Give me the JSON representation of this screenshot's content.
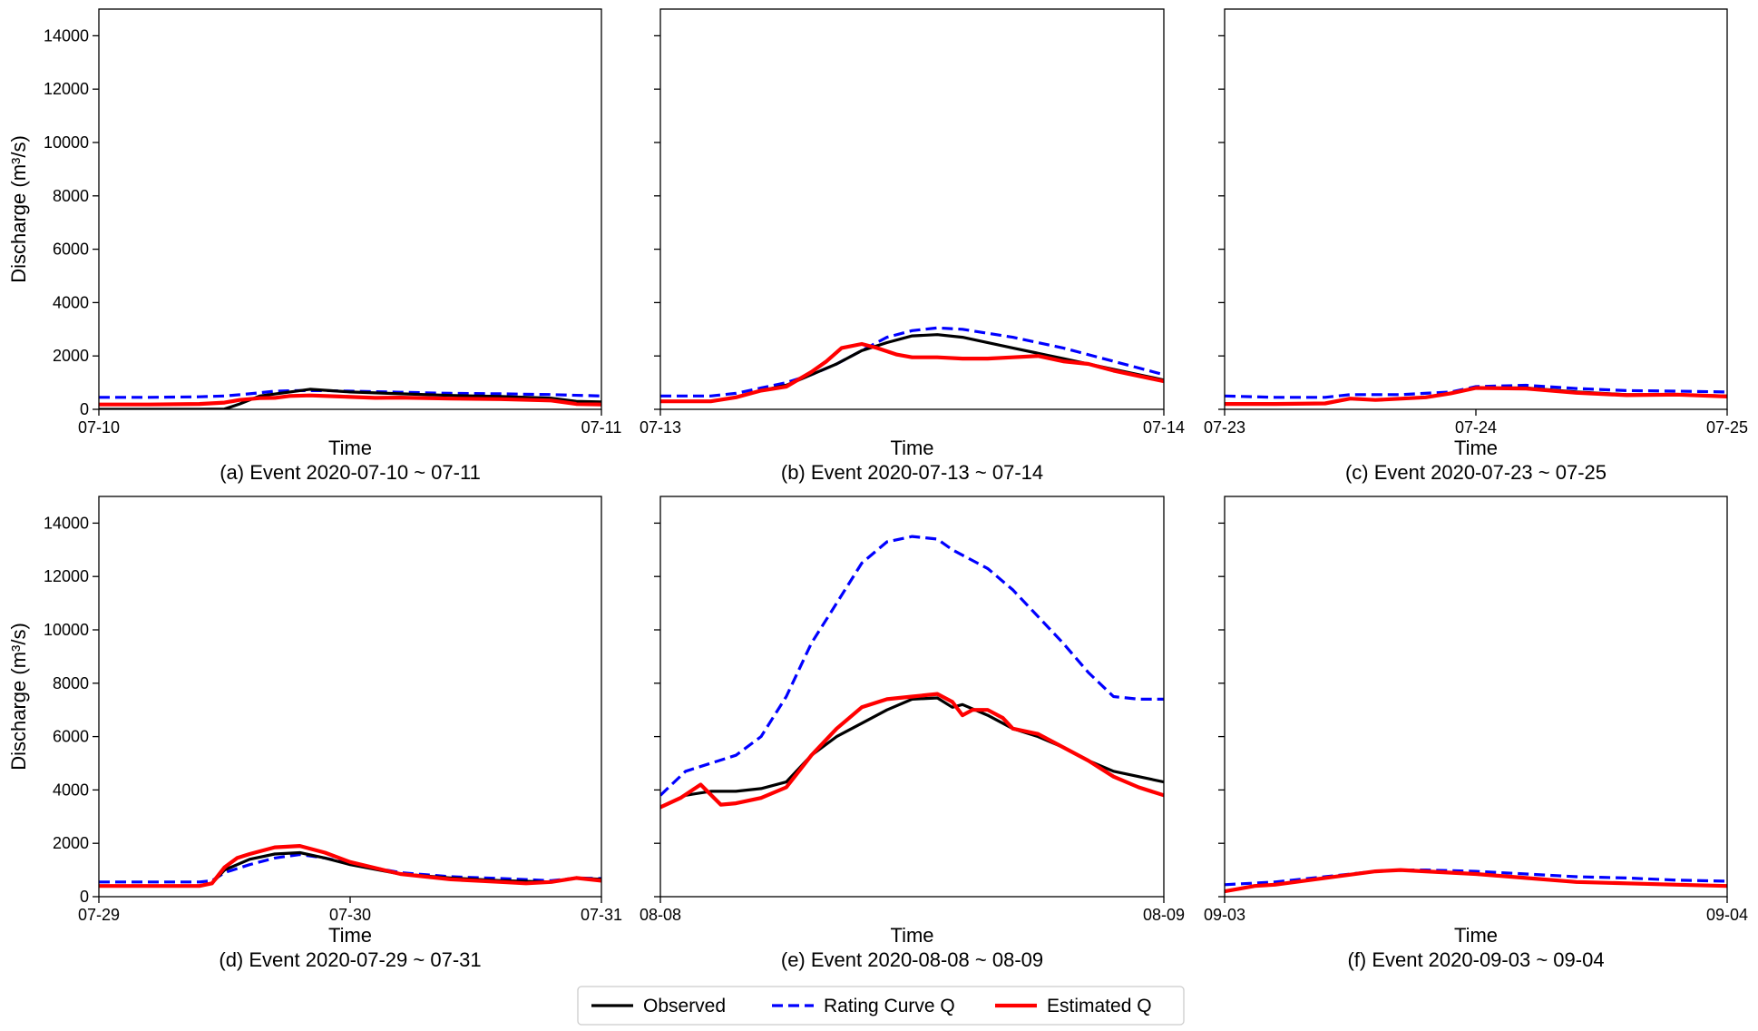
{
  "colors": {
    "observed": "#000000",
    "rating": "#0000ff",
    "estimated": "#ff0000"
  },
  "legend": {
    "placement": "bottom-center",
    "entries": [
      {
        "key": "observed",
        "label": "Observed",
        "style": "solid"
      },
      {
        "key": "rating",
        "label": "Rating Curve Q",
        "style": "dashed"
      },
      {
        "key": "estimated",
        "label": "Estimated Q",
        "style": "solid"
      }
    ]
  },
  "shared": {
    "ylabel": "Discharge (m³/s)",
    "xlabel": "Time",
    "ylim": [
      0,
      15000
    ],
    "yticks": [
      0,
      2000,
      4000,
      6000,
      8000,
      10000,
      12000,
      14000
    ]
  },
  "chart_data": [
    {
      "type": "line",
      "caption": "(a) Event 2020-07-10 ~ 07-11",
      "xlabel": "Time",
      "ylabel": "Discharge (m³/s)",
      "xticks": [
        "07-10",
        "07-11"
      ],
      "xlim": [
        0,
        1
      ],
      "ylim": [
        0,
        15000
      ],
      "series": [
        {
          "key": "observed",
          "name": "Observed",
          "x": [
            0,
            0.1,
            0.2,
            0.25,
            0.28,
            0.32,
            0.38,
            0.42,
            0.5,
            0.6,
            0.7,
            0.8,
            0.9,
            0.95,
            1.0
          ],
          "y": [
            0,
            0,
            0,
            10,
            200,
            500,
            650,
            750,
            650,
            580,
            520,
            480,
            420,
            300,
            280
          ]
        },
        {
          "key": "rating",
          "name": "Rating Curve Q",
          "x": [
            0,
            0.1,
            0.2,
            0.25,
            0.3,
            0.35,
            0.4,
            0.45,
            0.5,
            0.6,
            0.7,
            0.8,
            0.9,
            1.0
          ],
          "y": [
            450,
            450,
            470,
            500,
            580,
            680,
            700,
            700,
            680,
            640,
            600,
            580,
            550,
            500
          ]
        },
        {
          "key": "estimated",
          "name": "Estimated Q",
          "x": [
            0,
            0.1,
            0.2,
            0.25,
            0.28,
            0.32,
            0.35,
            0.38,
            0.42,
            0.48,
            0.55,
            0.6,
            0.7,
            0.8,
            0.9,
            0.95,
            1.0
          ],
          "y": [
            180,
            180,
            200,
            250,
            350,
            420,
            430,
            500,
            520,
            480,
            430,
            440,
            400,
            380,
            330,
            200,
            180
          ]
        }
      ]
    },
    {
      "type": "line",
      "caption": "(b) Event 2020-07-13 ~ 07-14",
      "xlabel": "Time",
      "ylabel": "",
      "xticks": [
        "07-13",
        "07-14"
      ],
      "xlim": [
        0,
        1
      ],
      "ylim": [
        0,
        15000
      ],
      "series": [
        {
          "key": "observed",
          "name": "Observed",
          "x": [
            0,
            0.1,
            0.15,
            0.2,
            0.25,
            0.3,
            0.35,
            0.4,
            0.45,
            0.5,
            0.55,
            0.6,
            0.7,
            0.8,
            0.9,
            1.0
          ],
          "y": [
            300,
            300,
            450,
            700,
            900,
            1300,
            1700,
            2200,
            2500,
            2750,
            2800,
            2700,
            2300,
            1900,
            1500,
            1100
          ]
        },
        {
          "key": "rating",
          "name": "Rating Curve Q",
          "x": [
            0,
            0.1,
            0.15,
            0.2,
            0.25,
            0.3,
            0.35,
            0.4,
            0.45,
            0.5,
            0.55,
            0.6,
            0.7,
            0.8,
            0.9,
            1.0
          ],
          "y": [
            500,
            500,
            600,
            800,
            1000,
            1300,
            1700,
            2200,
            2700,
            2950,
            3050,
            3000,
            2700,
            2300,
            1800,
            1300
          ]
        },
        {
          "key": "estimated",
          "name": "Estimated Q",
          "x": [
            0,
            0.1,
            0.15,
            0.2,
            0.25,
            0.3,
            0.33,
            0.36,
            0.4,
            0.43,
            0.47,
            0.5,
            0.55,
            0.6,
            0.65,
            0.7,
            0.75,
            0.8,
            0.85,
            0.9,
            1.0
          ],
          "y": [
            300,
            300,
            450,
            700,
            850,
            1400,
            1800,
            2300,
            2450,
            2300,
            2050,
            1950,
            1950,
            1900,
            1900,
            1950,
            2000,
            1800,
            1700,
            1450,
            1050
          ]
        }
      ]
    },
    {
      "type": "line",
      "caption": "(c) Event 2020-07-23 ~ 07-25",
      "xlabel": "Time",
      "ylabel": "",
      "xticks": [
        "07-23",
        "07-24",
        "07-25"
      ],
      "xlim": [
        0,
        2
      ],
      "ylim": [
        0,
        15000
      ],
      "series": [
        {
          "key": "observed",
          "name": "Observed",
          "x": [
            0,
            0.2,
            0.4,
            0.5,
            0.6,
            0.8,
            0.9,
            1.0,
            1.2,
            1.4,
            1.6,
            1.8,
            2.0
          ],
          "y": [
            200,
            200,
            220,
            400,
            350,
            450,
            600,
            800,
            800,
            650,
            550,
            550,
            500
          ]
        },
        {
          "key": "rating",
          "name": "Rating Curve Q",
          "x": [
            0,
            0.2,
            0.4,
            0.5,
            0.7,
            0.9,
            1.0,
            1.2,
            1.4,
            1.6,
            1.8,
            2.0
          ],
          "y": [
            500,
            450,
            450,
            550,
            550,
            650,
            850,
            900,
            780,
            700,
            680,
            650
          ]
        },
        {
          "key": "estimated",
          "name": "Estimated Q",
          "x": [
            0,
            0.2,
            0.4,
            0.5,
            0.6,
            0.8,
            0.9,
            1.0,
            1.2,
            1.4,
            1.6,
            1.8,
            2.0
          ],
          "y": [
            200,
            200,
            220,
            400,
            350,
            450,
            600,
            800,
            780,
            620,
            530,
            550,
            480
          ]
        }
      ]
    },
    {
      "type": "line",
      "caption": "(d) Event 2020-07-29 ~ 07-31",
      "xlabel": "Time",
      "ylabel": "Discharge (m³/s)",
      "xticks": [
        "07-29",
        "07-30",
        "07-31"
      ],
      "xlim": [
        0,
        2
      ],
      "ylim": [
        0,
        15000
      ],
      "series": [
        {
          "key": "observed",
          "name": "Observed",
          "x": [
            0,
            0.2,
            0.4,
            0.45,
            0.5,
            0.6,
            0.7,
            0.8,
            0.9,
            1.0,
            1.2,
            1.4,
            1.6,
            1.8,
            1.9,
            2.0
          ],
          "y": [
            400,
            400,
            400,
            500,
            1000,
            1400,
            1600,
            1650,
            1450,
            1200,
            850,
            700,
            600,
            550,
            700,
            650
          ]
        },
        {
          "key": "rating",
          "name": "Rating Curve Q",
          "x": [
            0,
            0.2,
            0.4,
            0.45,
            0.5,
            0.6,
            0.7,
            0.8,
            0.9,
            1.0,
            1.2,
            1.4,
            1.6,
            1.8,
            1.9,
            2.0
          ],
          "y": [
            550,
            550,
            550,
            600,
            900,
            1200,
            1450,
            1580,
            1450,
            1250,
            900,
            750,
            680,
            600,
            700,
            680
          ]
        },
        {
          "key": "estimated",
          "name": "Estimated Q",
          "x": [
            0,
            0.2,
            0.4,
            0.45,
            0.5,
            0.55,
            0.6,
            0.7,
            0.8,
            0.9,
            1.0,
            1.2,
            1.4,
            1.6,
            1.7,
            1.8,
            1.9,
            2.0
          ],
          "y": [
            400,
            400,
            400,
            500,
            1100,
            1450,
            1600,
            1850,
            1900,
            1650,
            1300,
            850,
            650,
            550,
            500,
            550,
            700,
            600
          ]
        }
      ]
    },
    {
      "type": "line",
      "caption": "(e) Event 2020-08-08 ~ 08-09",
      "xlabel": "Time",
      "ylabel": "",
      "xticks": [
        "08-08",
        "08-09"
      ],
      "xlim": [
        0,
        1
      ],
      "ylim": [
        0,
        15000
      ],
      "series": [
        {
          "key": "observed",
          "name": "Observed",
          "x": [
            0,
            0.05,
            0.1,
            0.15,
            0.2,
            0.25,
            0.3,
            0.35,
            0.4,
            0.45,
            0.5,
            0.55,
            0.58,
            0.6,
            0.65,
            0.7,
            0.75,
            0.8,
            0.85,
            0.9,
            0.95,
            1.0
          ],
          "y": [
            3350,
            3800,
            3950,
            3950,
            4050,
            4300,
            5300,
            6000,
            6500,
            7000,
            7400,
            7450,
            7100,
            7200,
            6800,
            6300,
            6000,
            5600,
            5100,
            4700,
            4500,
            4300
          ]
        },
        {
          "key": "rating",
          "name": "Rating Curve Q",
          "x": [
            0,
            0.05,
            0.1,
            0.15,
            0.2,
            0.25,
            0.3,
            0.35,
            0.4,
            0.45,
            0.5,
            0.55,
            0.58,
            0.6,
            0.65,
            0.7,
            0.75,
            0.8,
            0.85,
            0.9,
            0.95,
            1.0
          ],
          "y": [
            3800,
            4700,
            5000,
            5300,
            6000,
            7500,
            9500,
            11000,
            12500,
            13300,
            13500,
            13400,
            13000,
            12800,
            12300,
            11500,
            10500,
            9500,
            8400,
            7500,
            7400,
            7400
          ]
        },
        {
          "key": "estimated",
          "name": "Estimated Q",
          "x": [
            0,
            0.04,
            0.08,
            0.12,
            0.15,
            0.2,
            0.25,
            0.3,
            0.35,
            0.4,
            0.45,
            0.5,
            0.55,
            0.58,
            0.6,
            0.62,
            0.65,
            0.68,
            0.7,
            0.75,
            0.8,
            0.85,
            0.9,
            0.95,
            1.0
          ],
          "y": [
            3350,
            3700,
            4200,
            3450,
            3500,
            3700,
            4100,
            5300,
            6300,
            7100,
            7400,
            7500,
            7600,
            7300,
            6800,
            7000,
            7000,
            6700,
            6300,
            6100,
            5600,
            5100,
            4500,
            4100,
            3800
          ]
        }
      ]
    },
    {
      "type": "line",
      "caption": "(f) Event 2020-09-03 ~ 09-04",
      "xlabel": "Time",
      "ylabel": "",
      "xticks": [
        "09-03",
        "09-04"
      ],
      "xlim": [
        0,
        1
      ],
      "ylim": [
        0,
        15000
      ],
      "series": [
        {
          "key": "observed",
          "name": "Observed",
          "x": [
            0,
            0.03,
            0.06,
            0.1,
            0.2,
            0.3,
            0.35,
            0.4,
            0.5,
            0.6,
            0.7,
            0.8,
            0.9,
            1.0
          ],
          "y": [
            200,
            300,
            400,
            450,
            700,
            950,
            1000,
            950,
            850,
            700,
            550,
            500,
            450,
            400
          ]
        },
        {
          "key": "rating",
          "name": "Rating Curve Q",
          "x": [
            0,
            0.05,
            0.1,
            0.2,
            0.3,
            0.35,
            0.4,
            0.5,
            0.6,
            0.7,
            0.8,
            0.9,
            1.0
          ],
          "y": [
            450,
            500,
            550,
            750,
            950,
            1000,
            1000,
            950,
            850,
            750,
            700,
            620,
            580
          ]
        },
        {
          "key": "estimated",
          "name": "Estimated Q",
          "x": [
            0,
            0.03,
            0.06,
            0.1,
            0.2,
            0.3,
            0.35,
            0.4,
            0.5,
            0.6,
            0.7,
            0.8,
            0.9,
            1.0
          ],
          "y": [
            200,
            300,
            400,
            450,
            700,
            950,
            1000,
            950,
            850,
            700,
            550,
            500,
            450,
            400
          ]
        }
      ]
    }
  ]
}
